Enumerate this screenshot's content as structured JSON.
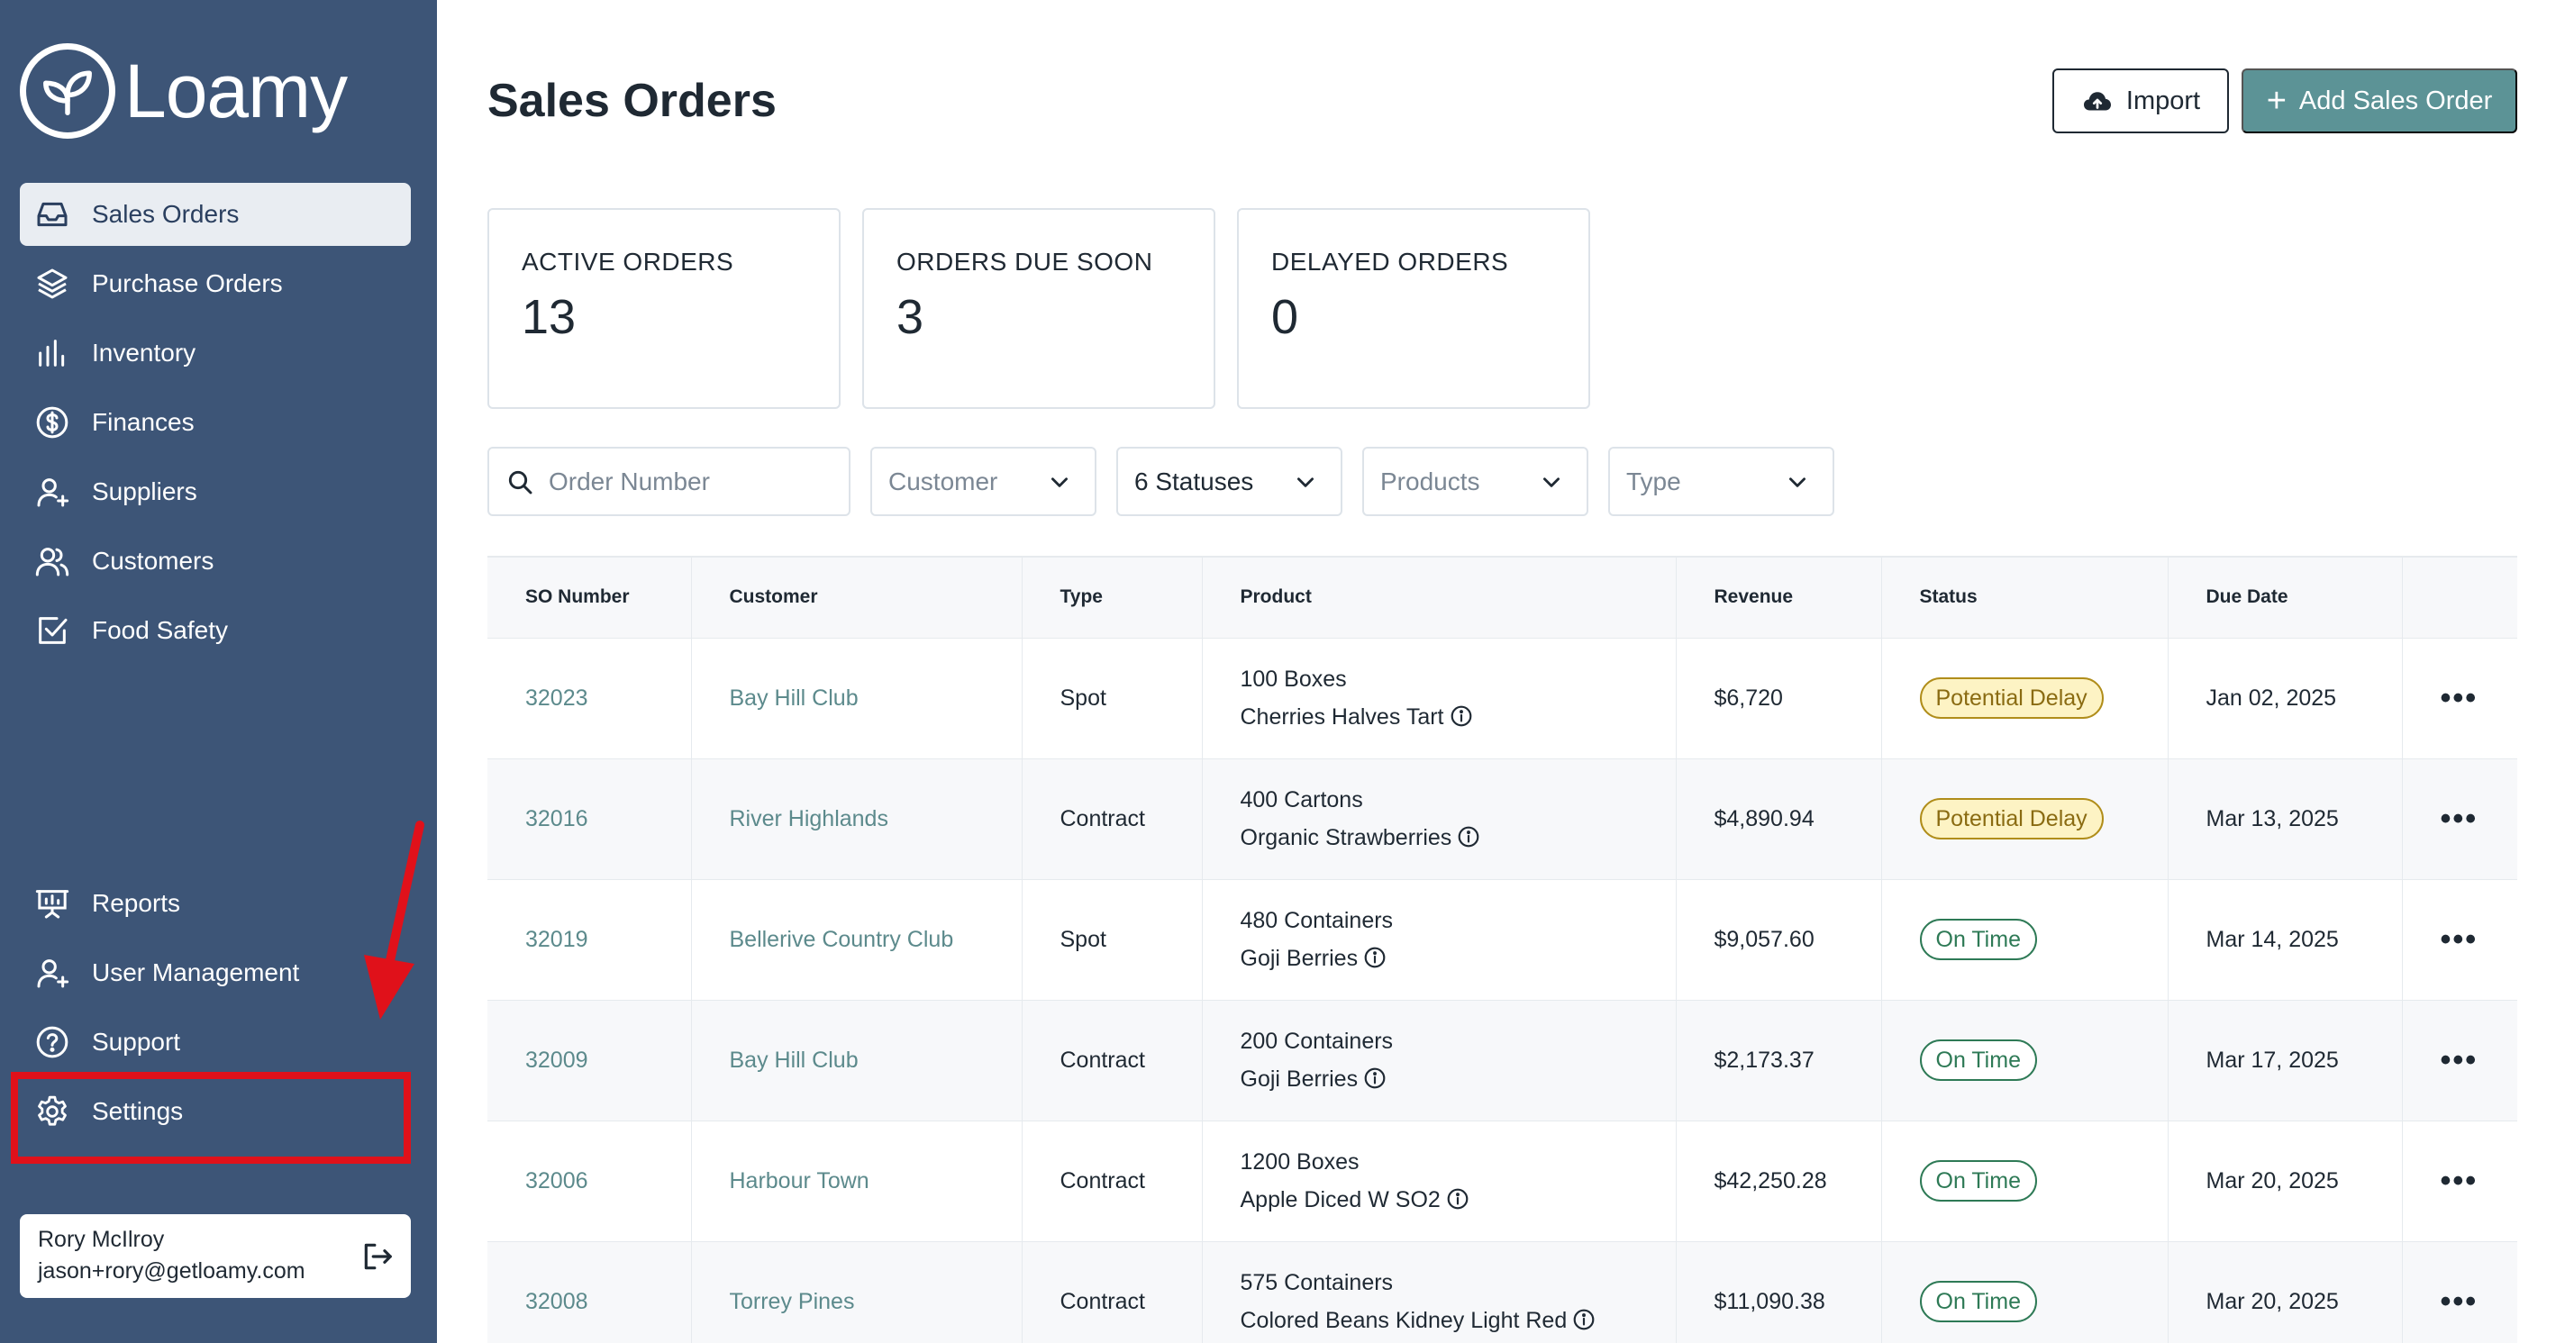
{
  "brand": {
    "name": "Loamy",
    "icon": "leaf-icon"
  },
  "sidebar": {
    "top_items": [
      {
        "label": "Sales Orders",
        "icon": "inbox-icon",
        "active": true
      },
      {
        "label": "Purchase Orders",
        "icon": "layers-icon"
      },
      {
        "label": "Inventory",
        "icon": "bar-chart-icon"
      },
      {
        "label": "Finances",
        "icon": "dollar-circle-icon"
      },
      {
        "label": "Suppliers",
        "icon": "user-plus-icon"
      },
      {
        "label": "Customers",
        "icon": "users-icon"
      },
      {
        "label": "Food Safety",
        "icon": "check-square-icon"
      }
    ],
    "bottom_items": [
      {
        "label": "Reports",
        "icon": "presentation-icon"
      },
      {
        "label": "User Management",
        "icon": "user-plus-icon"
      },
      {
        "label": "Support",
        "icon": "help-circle-icon"
      },
      {
        "label": "Settings",
        "icon": "gear-icon"
      }
    ],
    "user": {
      "name": "Rory McIlroy",
      "email": "jason+rory@getloamy.com",
      "logout_icon": "logout-icon"
    }
  },
  "header": {
    "title": "Sales Orders",
    "import_label": "Import",
    "add_label": "Add Sales Order"
  },
  "stats": [
    {
      "label": "ACTIVE ORDERS",
      "value": "13"
    },
    {
      "label": "ORDERS DUE SOON",
      "value": "3"
    },
    {
      "label": "DELAYED ORDERS",
      "value": "0"
    }
  ],
  "filters": {
    "search_placeholder": "Order Number",
    "customer": "Customer",
    "statuses": "6 Statuses",
    "products": "Products",
    "type": "Type"
  },
  "table": {
    "columns": [
      "SO Number",
      "Customer",
      "Type",
      "Product",
      "Revenue",
      "Status",
      "Due Date",
      ""
    ],
    "rows": [
      {
        "so": "32023",
        "customer": "Bay Hill Club",
        "type": "Spot",
        "qty": "100 Boxes",
        "product": "Cherries Halves Tart",
        "revenue": "$6,720",
        "status": "Potential Delay",
        "status_kind": "delay",
        "due": "Jan 02, 2025"
      },
      {
        "so": "32016",
        "customer": "River Highlands",
        "type": "Contract",
        "qty": "400 Cartons",
        "product": "Organic Strawberries",
        "revenue": "$4,890.94",
        "status": "Potential Delay",
        "status_kind": "delay",
        "due": "Mar 13, 2025"
      },
      {
        "so": "32019",
        "customer": "Bellerive Country Club",
        "type": "Spot",
        "qty": "480 Containers",
        "product": "Goji Berries",
        "revenue": "$9,057.60",
        "status": "On Time",
        "status_kind": "ontime",
        "due": "Mar 14, 2025"
      },
      {
        "so": "32009",
        "customer": "Bay Hill Club",
        "type": "Contract",
        "qty": "200 Containers",
        "product": "Goji Berries",
        "revenue": "$2,173.37",
        "status": "On Time",
        "status_kind": "ontime",
        "due": "Mar 17, 2025"
      },
      {
        "so": "32006",
        "customer": "Harbour Town",
        "type": "Contract",
        "qty": "1200 Boxes",
        "product": "Apple Diced W SO2",
        "revenue": "$42,250.28",
        "status": "On Time",
        "status_kind": "ontime",
        "due": "Mar 20, 2025"
      },
      {
        "so": "32008",
        "customer": "Torrey Pines",
        "type": "Contract",
        "qty": "575 Containers",
        "product": "Colored Beans Kidney Light Red",
        "revenue": "$11,090.38",
        "status": "On Time",
        "status_kind": "ontime",
        "due": "Mar 20, 2025"
      }
    ]
  },
  "colors": {
    "sidebar": "#3d5577",
    "accent": "#5c9396",
    "highlight": "#e0111a"
  }
}
